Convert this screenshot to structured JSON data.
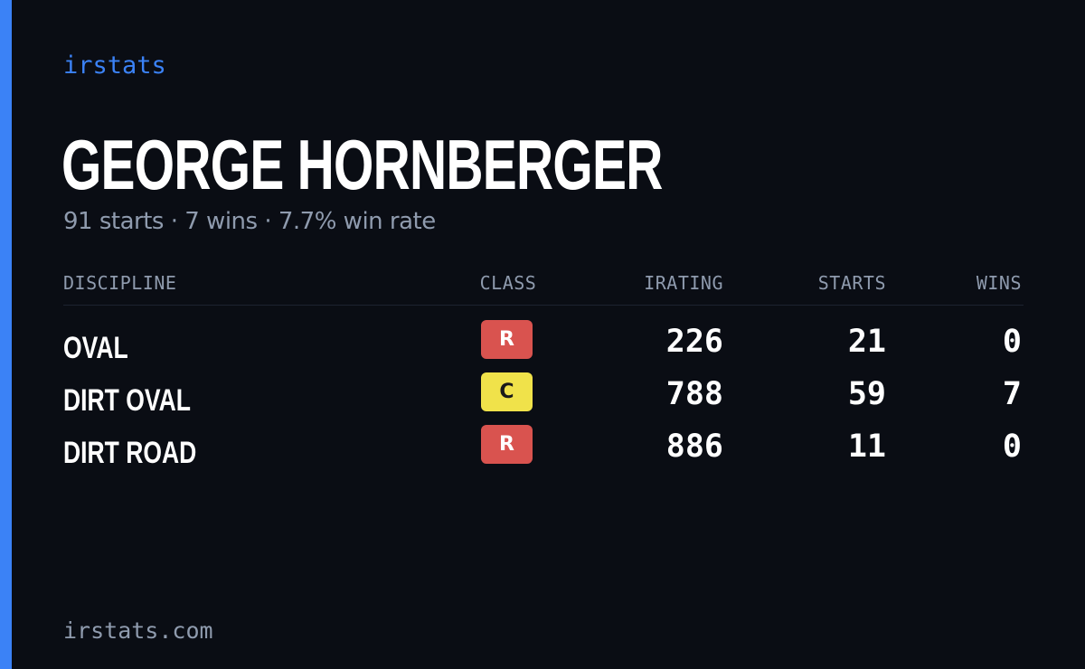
{
  "brand": "irstats",
  "driver": {
    "name": "GEORGE HORNBERGER",
    "summary": "91 starts · 7 wins · 7.7% win rate"
  },
  "table": {
    "headers": {
      "discipline": "DISCIPLINE",
      "class": "CLASS",
      "irating": "IRATING",
      "starts": "STARTS",
      "wins": "WINS"
    },
    "rows": [
      {
        "discipline": "OVAL",
        "class": "R",
        "class_color": "#d9534f",
        "class_text_color": "#ffffff",
        "irating": "226",
        "starts": "21",
        "wins": "0"
      },
      {
        "discipline": "DIRT OVAL",
        "class": "C",
        "class_color": "#f0e24a",
        "class_text_color": "#1a1a1a",
        "irating": "788",
        "starts": "59",
        "wins": "7"
      },
      {
        "discipline": "DIRT ROAD",
        "class": "R",
        "class_color": "#d9534f",
        "class_text_color": "#ffffff",
        "irating": "886",
        "starts": "11",
        "wins": "0"
      }
    ]
  },
  "footer": "irstats.com",
  "colors": {
    "accent": "#3b82f6",
    "background": "#0a0d14",
    "muted_text": "#8f9bae"
  }
}
